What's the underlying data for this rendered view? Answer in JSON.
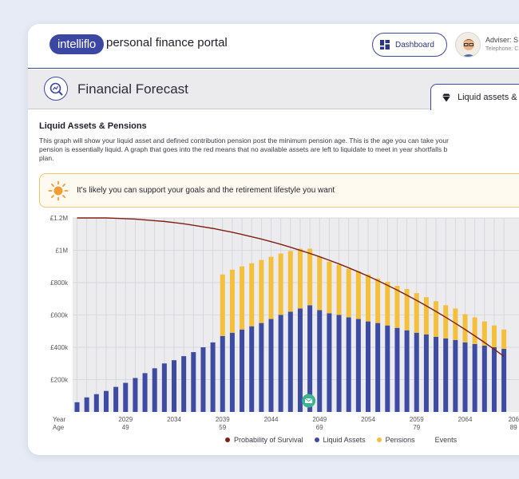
{
  "header": {
    "logo_text": "intelliflo",
    "portal_name": "personal finance portal",
    "dashboard_label": "Dashboard",
    "adviser_label": "Adviser: S",
    "telephone_label": "Telephone: C"
  },
  "page": {
    "title": "Financial Forecast",
    "tab_label": "Liquid assets &"
  },
  "section": {
    "title": "Liquid Assets & Pensions",
    "description_line1": "This graph will show your liquid asset and defined contribution pension post the minimum pension age. This is the age you can take your",
    "description_line2": "pension is essentially liquid. A graph that goes into the red means that no available assets are left to liquidate to meet in year shortfalls b",
    "description_line3": "plan."
  },
  "banner": {
    "message": "It's likely you can support your goals and the retirement lifestyle you want"
  },
  "chart_data": {
    "type": "bar",
    "stacked": true,
    "y_ticks": [
      "£200k",
      "£400k",
      "£600k",
      "£800k",
      "£1M",
      "£1.2M"
    ],
    "ylim": [
      0,
      1200000
    ],
    "year_label": "Year",
    "age_label": "Age",
    "x_year_ticks": [
      "2029",
      "2034",
      "2039",
      "2044",
      "2049",
      "2054",
      "2059",
      "2064",
      "206"
    ],
    "x_age_ticks": [
      "49",
      "",
      "59",
      "",
      "69",
      "",
      "79",
      "",
      "89"
    ],
    "years": [
      2024,
      2025,
      2026,
      2027,
      2028,
      2029,
      2030,
      2031,
      2032,
      2033,
      2034,
      2035,
      2036,
      2037,
      2038,
      2039,
      2040,
      2041,
      2042,
      2043,
      2044,
      2045,
      2046,
      2047,
      2048,
      2049,
      2050,
      2051,
      2052,
      2053,
      2054,
      2055,
      2056,
      2057,
      2058,
      2059,
      2060,
      2061,
      2062,
      2063,
      2064,
      2065,
      2066,
      2067,
      2068
    ],
    "series": [
      {
        "name": "Liquid Assets",
        "color": "#3d4ba3",
        "values": [
          60000,
          90000,
          110000,
          130000,
          155000,
          180000,
          210000,
          240000,
          270000,
          300000,
          320000,
          345000,
          370000,
          400000,
          430000,
          470000,
          490000,
          510000,
          530000,
          550000,
          575000,
          600000,
          620000,
          640000,
          660000,
          630000,
          610000,
          600000,
          585000,
          575000,
          560000,
          550000,
          535000,
          520000,
          505000,
          490000,
          480000,
          465000,
          455000,
          445000,
          430000,
          420000,
          410000,
          400000,
          390000
        ]
      },
      {
        "name": "Pensions",
        "color": "#f4c03b",
        "values": [
          0,
          0,
          0,
          0,
          0,
          0,
          0,
          0,
          0,
          0,
          0,
          0,
          0,
          0,
          0,
          380000,
          390000,
          390000,
          390000,
          390000,
          385000,
          380000,
          375000,
          370000,
          350000,
          330000,
          320000,
          310000,
          300000,
          295000,
          290000,
          275000,
          270000,
          260000,
          255000,
          245000,
          230000,
          220000,
          205000,
          195000,
          175000,
          165000,
          150000,
          135000,
          120000
        ]
      }
    ],
    "survival_curve": {
      "name": "Probability of Survival",
      "color": "#7e1f12",
      "values": [
        1.0,
        1.0,
        1.0,
        1.0,
        0.998,
        0.996,
        0.994,
        0.99,
        0.986,
        0.982,
        0.976,
        0.97,
        0.962,
        0.954,
        0.946,
        0.936,
        0.926,
        0.915,
        0.903,
        0.891,
        0.878,
        0.864,
        0.849,
        0.833,
        0.817,
        0.8,
        0.782,
        0.763,
        0.743,
        0.722,
        0.7,
        0.677,
        0.653,
        0.628,
        0.602,
        0.575,
        0.547,
        0.518,
        0.488,
        0.457,
        0.425,
        0.392,
        0.358,
        0.323,
        0.287
      ]
    },
    "events": {
      "name": "Events",
      "year": 2048
    }
  },
  "legend": {
    "survival": "Probability of Survival",
    "liquid": "Liquid Assets",
    "pensions": "Pensions",
    "events": "Events",
    "colors": {
      "survival": "#7e1f12",
      "liquid": "#3d4ba3",
      "pensions": "#f4c03b",
      "events": "#ffffff"
    }
  }
}
